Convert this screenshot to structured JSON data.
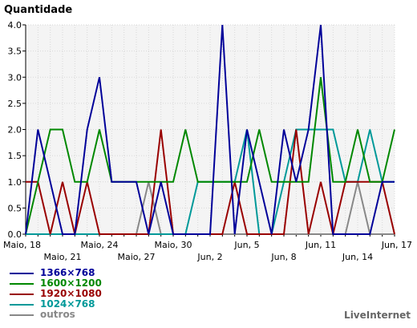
{
  "chart_data": {
    "type": "line",
    "ylabel": "Quantidade",
    "ylim": [
      0,
      4
    ],
    "yticks": [
      "0.0",
      "0.5",
      "1.0",
      "1.5",
      "2.0",
      "2.5",
      "3.0",
      "3.5",
      "4.0"
    ],
    "x_dates": [
      "Maio, 18",
      "Maio, 19",
      "Maio, 20",
      "Maio, 21",
      "Maio, 22",
      "Maio, 23",
      "Maio, 24",
      "Maio, 25",
      "Maio, 26",
      "Maio, 27",
      "Maio, 28",
      "Maio, 29",
      "Maio, 30",
      "Maio, 31",
      "Jun, 1",
      "Jun, 2",
      "Jun, 3",
      "Jun, 4",
      "Jun, 5",
      "Jun, 6",
      "Jun, 7",
      "Jun, 8",
      "Jun, 9",
      "Jun, 10",
      "Jun, 11",
      "Jun, 12",
      "Jun, 13",
      "Jun, 14",
      "Jun, 15",
      "Jun, 16",
      "Jun, 17"
    ],
    "xtick_labels": [
      {
        "label": "Maio, 18",
        "index": 0,
        "row": 1
      },
      {
        "label": "Maio, 21",
        "index": 3,
        "row": 2
      },
      {
        "label": "Maio, 24",
        "index": 6,
        "row": 1
      },
      {
        "label": "Maio, 27",
        "index": 9,
        "row": 2
      },
      {
        "label": "Maio, 30",
        "index": 12,
        "row": 1
      },
      {
        "label": "Jun, 2",
        "index": 15,
        "row": 2
      },
      {
        "label": "Jun, 5",
        "index": 18,
        "row": 1
      },
      {
        "label": "Jun, 8",
        "index": 21,
        "row": 2
      },
      {
        "label": "Jun, 11",
        "index": 24,
        "row": 1
      },
      {
        "label": "Jun, 14",
        "index": 27,
        "row": 2
      },
      {
        "label": "Jun, 17",
        "index": 30,
        "row": 1
      }
    ],
    "grid": true,
    "legend_position": "bottom-left",
    "series": [
      {
        "name": "1366×768",
        "color": "#000099",
        "values": [
          0,
          2,
          1,
          0,
          0,
          2,
          3,
          1,
          1,
          1,
          0,
          1,
          0,
          0,
          0,
          0,
          4,
          0,
          2,
          1,
          0,
          2,
          1,
          2,
          4,
          0,
          0,
          0,
          0,
          1,
          1
        ]
      },
      {
        "name": "1600×1200",
        "color": "#008800",
        "values": [
          0,
          1,
          2,
          2,
          1,
          1,
          2,
          1,
          1,
          1,
          1,
          1,
          1,
          2,
          1,
          1,
          1,
          1,
          1,
          2,
          1,
          1,
          1,
          1,
          3,
          1,
          1,
          2,
          1,
          1,
          2
        ]
      },
      {
        "name": "1920×1080",
        "color": "#990000",
        "values": [
          1,
          1,
          0,
          1,
          0,
          1,
          0,
          0,
          0,
          0,
          0,
          2,
          0,
          0,
          0,
          0,
          0,
          1,
          0,
          0,
          0,
          0,
          2,
          0,
          1,
          0,
          1,
          1,
          1,
          1,
          0
        ]
      },
      {
        "name": "1024×768",
        "color": "#009999",
        "values": [
          0,
          0,
          0,
          0,
          0,
          0,
          0,
          0,
          0,
          0,
          0,
          0,
          0,
          0,
          1,
          1,
          1,
          1,
          2,
          0,
          0,
          1,
          2,
          2,
          2,
          2,
          1,
          1,
          2,
          1,
          1
        ]
      },
      {
        "name": "outros",
        "color": "#888888",
        "values": [
          0,
          0,
          0,
          0,
          0,
          0,
          0,
          0,
          0,
          0,
          1,
          0,
          0,
          0,
          0,
          0,
          0,
          0,
          0,
          0,
          0,
          0,
          0,
          0,
          0,
          0,
          0,
          1,
          0,
          0,
          0
        ]
      }
    ]
  },
  "watermark": "LiveInternet"
}
